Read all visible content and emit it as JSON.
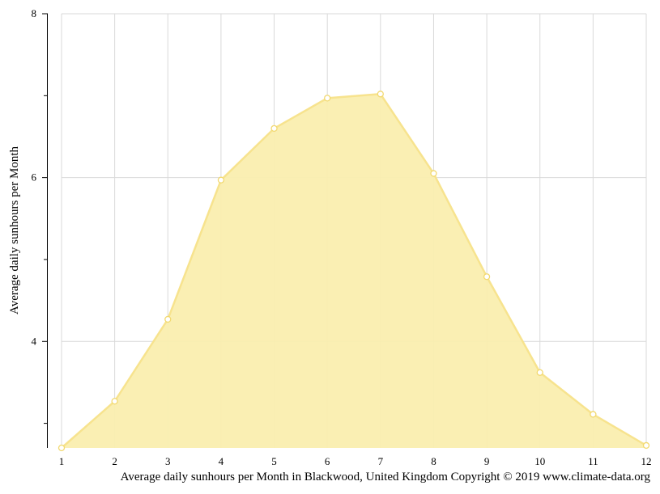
{
  "chart_data": {
    "type": "area",
    "ylabel": "Average daily sunhours per Month",
    "caption": "Average daily sunhours per Month in Blackwood, United Kingdom Copyright © 2019 www.climate-data.org",
    "x": [
      1,
      2,
      3,
      4,
      5,
      6,
      7,
      8,
      9,
      10,
      11,
      12
    ],
    "series": [
      {
        "values": [
          2.7,
          3.27,
          4.27,
          5.97,
          6.6,
          6.97,
          7.02,
          6.05,
          4.79,
          3.62,
          3.11,
          2.73
        ]
      }
    ],
    "xlim": [
      1,
      12
    ],
    "ylim": [
      2.7,
      8
    ],
    "y_major_ticks": [
      4,
      6,
      8
    ],
    "y_minor_ticks": [
      3,
      5,
      7
    ],
    "grid": true,
    "colors": {
      "fill": "#faeeaf",
      "line": "#f7e38e",
      "marker_fill": "#ffffff",
      "marker_stroke": "#f2d970",
      "grid": "#d9d9d9",
      "axis": "#000000"
    }
  }
}
